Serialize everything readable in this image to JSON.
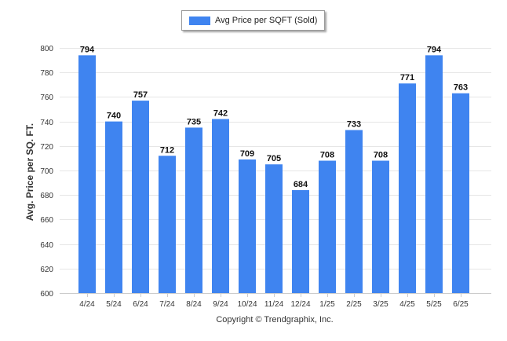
{
  "legend": {
    "label": "Avg Price per SQFT (Sold)"
  },
  "footer": {
    "text": "Copyright © Trendgraphix, Inc."
  },
  "colors": {
    "bar": "#3f84f0",
    "grid": "#e6e6e6",
    "axis": "#cccccc"
  },
  "chart_data": {
    "type": "bar",
    "title": "",
    "xlabel": "",
    "ylabel": "Avg. Price per SQ. FT.",
    "ylim": [
      600,
      800
    ],
    "yticks": [
      600,
      620,
      640,
      660,
      680,
      700,
      720,
      740,
      760,
      780,
      800
    ],
    "categories": [
      "4/24",
      "5/24",
      "6/24",
      "7/24",
      "8/24",
      "9/24",
      "10/24",
      "11/24",
      "12/24",
      "1/25",
      "2/25",
      "3/25",
      "4/25",
      "5/25",
      "6/25"
    ],
    "series": [
      {
        "name": "Avg Price per SQFT (Sold)",
        "values": [
          794,
          740,
          757,
          712,
          735,
          742,
          709,
          705,
          684,
          708,
          733,
          708,
          771,
          794,
          763
        ]
      }
    ],
    "data_labels": true,
    "grid": true,
    "legend_position": "top"
  }
}
